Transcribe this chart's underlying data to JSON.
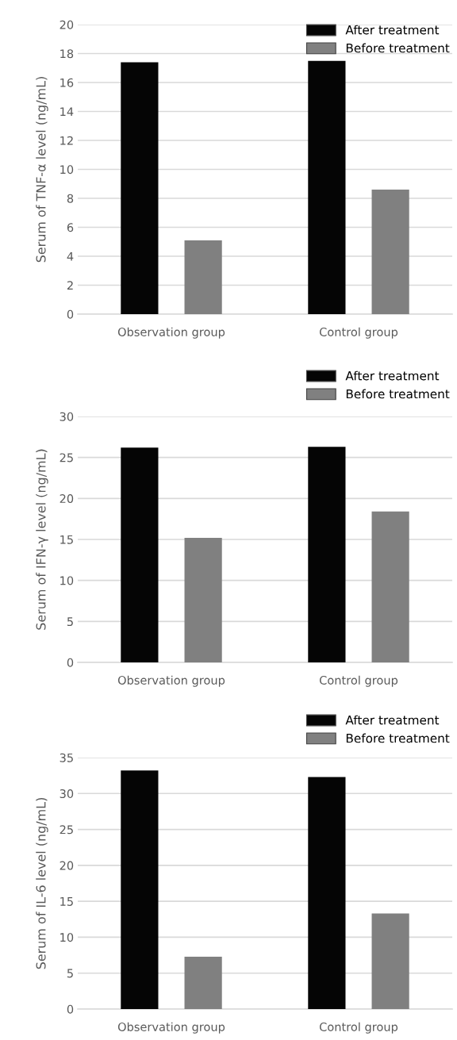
{
  "chart_data": [
    {
      "type": "bar",
      "ylabel": "Serum of TNF-α level (ng/mL)",
      "categories": [
        "Observation group",
        "Control group"
      ],
      "series": [
        {
          "name": "After treatment",
          "color": "#050505",
          "values": [
            17.4,
            17.5
          ]
        },
        {
          "name": "Before treatment",
          "color": "#808080",
          "values": [
            5.1,
            8.6
          ]
        }
      ],
      "ylim": [
        0,
        20
      ],
      "yticks": [
        0,
        2,
        4,
        6,
        8,
        10,
        12,
        14,
        16,
        18,
        20
      ],
      "grid": "y",
      "legend": "top right"
    },
    {
      "type": "bar",
      "ylabel": "Serum of IFN-γ level (ng/mL)",
      "categories": [
        "Observation group",
        "Control group"
      ],
      "series": [
        {
          "name": "After treatment",
          "color": "#050505",
          "values": [
            26.2,
            26.3
          ]
        },
        {
          "name": "Before treatment",
          "color": "#808080",
          "values": [
            15.2,
            18.4
          ]
        }
      ],
      "ylim": [
        0,
        30
      ],
      "yticks": [
        0,
        5,
        10,
        15,
        20,
        25,
        30
      ],
      "grid": "y",
      "legend": "top right"
    },
    {
      "type": "bar",
      "ylabel": "Serum of IL-6 level (ng/mL)",
      "categories": [
        "Observation group",
        "Control group"
      ],
      "series": [
        {
          "name": "After treatment",
          "color": "#050505",
          "values": [
            33.2,
            32.3
          ]
        },
        {
          "name": "Before treatment",
          "color": "#808080",
          "values": [
            7.3,
            13.3
          ]
        }
      ],
      "ylim": [
        0,
        35
      ],
      "yticks": [
        0,
        5,
        10,
        15,
        20,
        25,
        30,
        35
      ],
      "grid": "y",
      "legend": "top right"
    }
  ]
}
